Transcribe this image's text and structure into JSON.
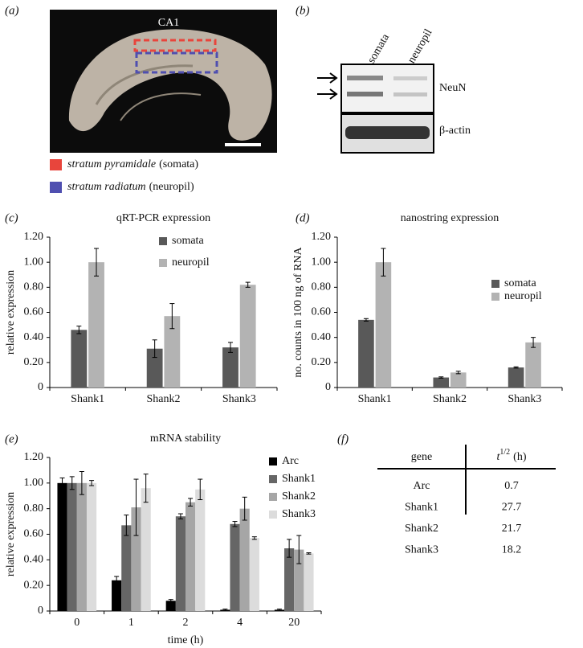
{
  "panel_labels": [
    "(a)",
    "(b)",
    "(c)",
    "(d)",
    "(e)",
    "(f)"
  ],
  "panel_a": {
    "region": "CA1",
    "legend": [
      {
        "name": "stratum pyramidale",
        "note": "(somata)",
        "color": "#e8453c"
      },
      {
        "name": "stratum radiatum",
        "note": "(neuropil)",
        "color": "#4f4fb0"
      }
    ]
  },
  "panel_b": {
    "lanes": [
      "somata",
      "neuropil"
    ],
    "bands": [
      "NeuN",
      "β-actin"
    ]
  },
  "chart_data": [
    {
      "type": "bar",
      "title": "qRT-PCR expression",
      "ylabel": "relative expression",
      "categories": [
        "Shank1",
        "Shank2",
        "Shank3"
      ],
      "series": [
        {
          "name": "somata",
          "color": "#595959",
          "values": [
            0.46,
            0.31,
            0.32
          ],
          "errors": [
            0.03,
            0.07,
            0.04
          ]
        },
        {
          "name": "neuropil",
          "color": "#b3b3b3",
          "values": [
            1.0,
            0.57,
            0.82
          ],
          "errors": [
            0.11,
            0.1,
            0.02
          ]
        }
      ],
      "ylim": [
        0,
        1.2
      ],
      "yticks": [
        0,
        {
          "value": 0.2,
          "label": "0.20"
        },
        {
          "value": 0.4,
          "label": "0.40"
        },
        {
          "value": 0.6,
          "label": "0.60"
        },
        {
          "value": 0.8,
          "label": "0.80"
        },
        {
          "value": 1.0,
          "label": "1.00"
        },
        {
          "value": 1.2,
          "label": "1.20"
        }
      ]
    },
    {
      "type": "bar",
      "title": "nanostring expression",
      "ylabel": "no. counts in 100 ng of RNA",
      "categories": [
        "Shank1",
        "Shank2",
        "Shank3"
      ],
      "series": [
        {
          "name": "somata",
          "color": "#595959",
          "values": [
            0.54,
            0.08,
            0.16
          ],
          "errors": [
            0.01,
            0.005,
            0.005
          ]
        },
        {
          "name": "neuropil",
          "color": "#b3b3b3",
          "values": [
            1.0,
            0.12,
            0.36
          ],
          "errors": [
            0.11,
            0.01,
            0.04
          ]
        }
      ],
      "ylim": [
        0,
        1.2
      ],
      "yticks": [
        0,
        {
          "value": 0.2,
          "label": "0.20"
        },
        {
          "value": 0.4,
          "label": "0.40"
        },
        {
          "value": 0.6,
          "label": "0.60"
        },
        {
          "value": 0.8,
          "label": "0.80"
        },
        {
          "value": 1.0,
          "label": "1.00"
        },
        {
          "value": 1.2,
          "label": "1.20"
        }
      ]
    },
    {
      "type": "bar",
      "title": "mRNA stability",
      "ylabel": "relative expression",
      "xlabel": "time (h)",
      "categories": [
        "0",
        "1",
        "2",
        "4",
        "20"
      ],
      "series": [
        {
          "name": "Arc",
          "color": "#000000",
          "values": [
            1.0,
            0.24,
            0.08,
            0.01,
            0.01
          ],
          "errors": [
            0.04,
            0.03,
            0.01,
            0.005,
            0.005
          ]
        },
        {
          "name": "Shank1",
          "color": "#666666",
          "values": [
            1.0,
            0.67,
            0.74,
            0.68,
            0.49
          ],
          "errors": [
            0.05,
            0.08,
            0.02,
            0.02,
            0.07
          ]
        },
        {
          "name": "Shank2",
          "color": "#a6a6a6",
          "values": [
            1.0,
            0.81,
            0.85,
            0.8,
            0.48
          ],
          "errors": [
            0.09,
            0.22,
            0.03,
            0.09,
            0.11
          ]
        },
        {
          "name": "Shank3",
          "color": "#dcdcdc",
          "values": [
            1.0,
            0.96,
            0.95,
            0.57,
            0.45
          ],
          "errors": [
            0.02,
            0.11,
            0.08,
            0.01,
            0.005
          ]
        }
      ],
      "ylim": [
        0,
        1.2
      ],
      "yticks": [
        0,
        {
          "value": 0.2,
          "label": "0.20"
        },
        {
          "value": 0.4,
          "label": "0.40"
        },
        {
          "value": 0.6,
          "label": "0.60"
        },
        {
          "value": 0.8,
          "label": "0.80"
        },
        {
          "value": 1.0,
          "label": "1.00"
        },
        {
          "value": 1.2,
          "label": "1.20"
        }
      ]
    }
  ],
  "table": {
    "header": {
      "gene": "gene",
      "t": "t",
      "sup": "1/2",
      "unit": "(h)"
    },
    "rows": [
      [
        "Arc",
        0.7
      ],
      [
        "Shank1",
        27.7
      ],
      [
        "Shank2",
        21.7
      ],
      [
        "Shank3",
        18.2
      ]
    ]
  }
}
